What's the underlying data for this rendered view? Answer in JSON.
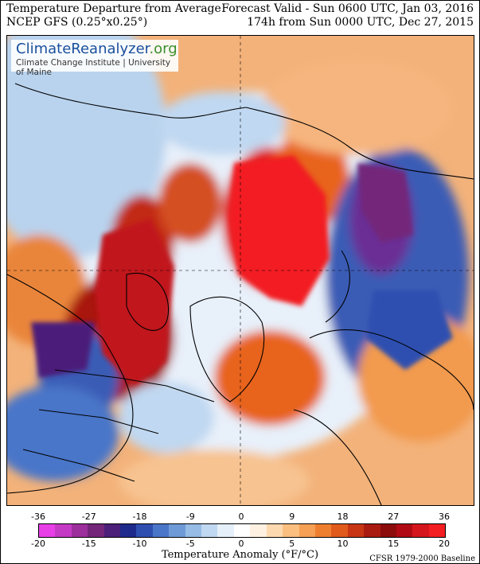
{
  "header": {
    "title_line1": "Temperature Departure from Average",
    "title_line2": "NCEP GFS (0.25°x0.25°)",
    "forecast_line1": "Forecast Valid - Sun 0600 UTC, Jan 03, 2016",
    "forecast_line2": "174h from Sun 0000 UTC, Dec 27, 2015"
  },
  "brand": {
    "name_part1": "ClimateReanalyzer",
    "name_part2": ".org",
    "subtitle": "Climate Change Institute | University of Maine"
  },
  "legend": {
    "label": "Temperature Anomaly (°F/°C)",
    "fahrenheit_ticks": [
      "-36",
      "-27",
      "-18",
      "-9",
      "0",
      "9",
      "18",
      "27",
      "36"
    ],
    "celsius_ticks": [
      "-20",
      "-15",
      "-10",
      "-5",
      "0",
      "5",
      "10",
      "15",
      "20"
    ],
    "colors": [
      "#e83ee8",
      "#c43ac4",
      "#9c2f9c",
      "#73267a",
      "#4b1f7a",
      "#1f2b8c",
      "#2f4fb0",
      "#4a76c9",
      "#6e9ad8",
      "#97bce6",
      "#c0d8f1",
      "#e6f0fa",
      "#ffffff",
      "#fff1e1",
      "#fdd9b0",
      "#fbbf80",
      "#f5a054",
      "#ee7f2f",
      "#e05a1c",
      "#c73514",
      "#a91a10",
      "#8c0b0b",
      "#b00b14",
      "#d4161c",
      "#f21e22"
    ],
    "baseline": "CFSR 1979-2000 Baseline"
  },
  "map": {
    "projection": "north polar stereographic",
    "palette": {
      "ocean_neutral": "#eef3fb",
      "very_warm": "#ee1c22",
      "warm": "#f5a054",
      "cold": "#2f4fb0",
      "very_cold": "#6a2e95"
    }
  }
}
